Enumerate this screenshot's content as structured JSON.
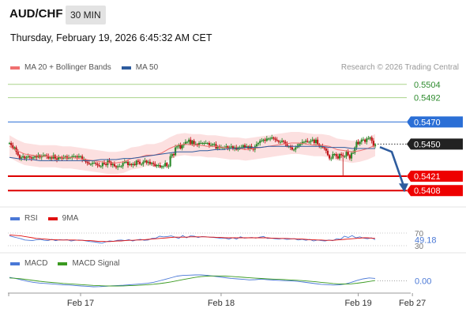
{
  "header": {
    "pair": "AUD/CHF",
    "timeframe": "30 MIN",
    "datetime": "Thursday, February 19, 2026 6:45:32 AM CET"
  },
  "legend": {
    "main": [
      {
        "label": "MA 20 + Bollinger Bands",
        "color": "#f07070"
      },
      {
        "label": "MA 50",
        "color": "#2e5c9e"
      }
    ],
    "credit": "Research © 2026 Trading Central",
    "rsi": [
      {
        "label": "RSI",
        "color": "#4a78d6"
      },
      {
        "label": "9MA",
        "color": "#e01010"
      }
    ],
    "macd": [
      {
        "label": "MACD",
        "color": "#4a78d6"
      },
      {
        "label": "MACD Signal",
        "color": "#3a9a20"
      }
    ]
  },
  "colors": {
    "bull": "#2e8b2e",
    "bear": "#c0181c",
    "band_fill": "#fbdada",
    "ma20": "#f07070",
    "ma50": "#2e5c9e",
    "arrow": "#2e5c9e"
  },
  "chart_data": [
    {
      "type": "candlestick",
      "panel": "price",
      "ylim": [
        0.5396,
        0.5516
      ],
      "levels": [
        {
          "value": 0.5504,
          "label": "0.5504",
          "style": "green-line"
        },
        {
          "value": 0.5492,
          "label": "0.5492",
          "style": "green-line"
        },
        {
          "value": 0.547,
          "label": "0.5470",
          "style": "blue-tag"
        },
        {
          "value": 0.545,
          "label": "0.5450",
          "style": "current-price"
        },
        {
          "value": 0.5421,
          "label": "0.5421",
          "style": "red-tag"
        },
        {
          "value": 0.5408,
          "label": "0.5408",
          "style": "red-tag"
        }
      ],
      "x_labels": [
        "Feb 17",
        "Feb 18",
        "Feb 19",
        "Feb 27"
      ],
      "x_label_index": [
        42,
        125,
        206,
        238
      ],
      "close": [
        0.5451,
        0.5449,
        0.5446,
        0.5447,
        0.5443,
        0.544,
        0.5437,
        0.5438,
        0.5439,
        0.5437,
        0.5438,
        0.5439,
        0.5438,
        0.5437,
        0.5438,
        0.5439,
        0.5438,
        0.544,
        0.5438,
        0.5439,
        0.544,
        0.544,
        0.5439,
        0.5437,
        0.5438,
        0.5437,
        0.544,
        0.5437,
        0.5436,
        0.5438,
        0.5438,
        0.5437,
        0.5438,
        0.5439,
        0.5437,
        0.5438,
        0.5438,
        0.5439,
        0.5439,
        0.5439,
        0.5438,
        0.5439,
        0.5439,
        0.5436,
        0.5436,
        0.5434,
        0.5433,
        0.5432,
        0.5432,
        0.5433,
        0.5433,
        0.5432,
        0.5431,
        0.543,
        0.543,
        0.5433,
        0.5432,
        0.5431,
        0.5435,
        0.5434,
        0.5431,
        0.5432,
        0.543,
        0.5429,
        0.543,
        0.543,
        0.543,
        0.5433,
        0.5434,
        0.5434,
        0.5431,
        0.5432,
        0.5431,
        0.5432,
        0.5431,
        0.5435,
        0.5434,
        0.5432,
        0.5432,
        0.5434,
        0.5435,
        0.5433,
        0.5434,
        0.5432,
        0.5433,
        0.5432,
        0.543,
        0.5431,
        0.5431,
        0.5429,
        0.543,
        0.543,
        0.5433,
        0.543,
        0.543,
        0.5439,
        0.5441,
        0.544,
        0.5447,
        0.5448,
        0.5449,
        0.5446,
        0.5449,
        0.545,
        0.5452,
        0.5452,
        0.5454,
        0.545,
        0.5453,
        0.545,
        0.545,
        0.5449,
        0.5451,
        0.5451,
        0.5451,
        0.5451,
        0.5451,
        0.5451,
        0.5449,
        0.5449,
        0.545,
        0.545,
        0.5446,
        0.5448,
        0.5447,
        0.5447,
        0.5447,
        0.5447,
        0.5448,
        0.5446,
        0.5447,
        0.5448,
        0.5446,
        0.5447,
        0.5445,
        0.5447,
        0.5447,
        0.5447,
        0.5449,
        0.5447,
        0.5448,
        0.5446,
        0.5448,
        0.5446,
        0.5445,
        0.5448,
        0.545,
        0.5451,
        0.5453,
        0.5453,
        0.5454,
        0.5453,
        0.5455,
        0.5455,
        0.5455,
        0.5456,
        0.5455,
        0.5454,
        0.5453,
        0.5452,
        0.5452,
        0.5453,
        0.5452,
        0.545,
        0.5448,
        0.5448,
        0.5447,
        0.5445,
        0.5445,
        0.5447,
        0.5448,
        0.545,
        0.545,
        0.5452,
        0.5452,
        0.5453,
        0.5452,
        0.5452,
        0.5453,
        0.5454,
        0.5451,
        0.5454,
        0.545,
        0.5448,
        0.5448,
        0.5447,
        0.5446,
        0.5444,
        0.544,
        0.5437,
        0.5437,
        0.5441,
        0.5441,
        0.5439,
        0.5437,
        0.5441,
        0.544,
        0.5439,
        0.5439,
        0.5443,
        0.544,
        0.5437,
        0.5442,
        0.5442,
        0.5447,
        0.5452,
        0.545,
        0.5452,
        0.5454,
        0.5454,
        0.5452,
        0.5455,
        0.5455,
        0.5456,
        0.5453,
        0.5448,
        0.545
      ],
      "high_low_spread": 0.0003,
      "wick_anomaly": {
        "index": 197,
        "low": 0.5421
      },
      "ma20": [
        0.5448,
        0.5444,
        0.5441,
        0.544,
        0.5439,
        0.5439,
        0.5439,
        0.5438,
        0.5438,
        0.5437,
        0.5436,
        0.5435,
        0.5434,
        0.5433,
        0.5433,
        0.5434,
        0.5437,
        0.5438,
        0.544,
        0.544,
        0.5442,
        0.5446,
        0.5449,
        0.545,
        0.5449,
        0.5449,
        0.5448,
        0.5448,
        0.5447,
        0.5446,
        0.5446,
        0.5445,
        0.5446,
        0.5447,
        0.5448,
        0.5449,
        0.545,
        0.5451,
        0.5451,
        0.545,
        0.5449,
        0.5449,
        0.5448,
        0.5445,
        0.5444,
        0.5443,
        0.5444,
        0.5446,
        0.5449
      ],
      "ma50": [
        0.5438,
        0.5437,
        0.5436,
        0.5436,
        0.5435,
        0.5435,
        0.5435,
        0.5435,
        0.5435,
        0.5435,
        0.5435,
        0.5435,
        0.5436,
        0.5436,
        0.5436,
        0.5437,
        0.5437,
        0.5438,
        0.5439,
        0.544,
        0.5441,
        0.5442,
        0.5443,
        0.5443,
        0.5443,
        0.5444,
        0.5444,
        0.5445,
        0.5445,
        0.5446,
        0.5446,
        0.5447,
        0.5447,
        0.5447,
        0.5448,
        0.5448,
        0.5448,
        0.5448,
        0.5448,
        0.5448,
        0.5448,
        0.5448,
        0.5447,
        0.5447,
        0.5447,
        0.5446,
        0.5446,
        0.5446,
        0.5446
      ],
      "band_width": 0.001,
      "forecast": {
        "from": 0.5448,
        "to": 0.5408
      }
    },
    {
      "type": "line",
      "panel": "rsi",
      "ylim": [
        30,
        70
      ],
      "ticks": [
        "70",
        "30"
      ],
      "current_label": "49.18",
      "series": [
        {
          "name": "RSI",
          "values": [
            61,
            58,
            55,
            52,
            48,
            47,
            46,
            49,
            50,
            47,
            46,
            50,
            46,
            49,
            48,
            49,
            45,
            47,
            48,
            47,
            45,
            43,
            42,
            40,
            38,
            42,
            45,
            44,
            47,
            48,
            46,
            49,
            45,
            48,
            50,
            47,
            48,
            53,
            54,
            60,
            58,
            59,
            61,
            57,
            53,
            62,
            55,
            61,
            60,
            56,
            59,
            58,
            57,
            56,
            55,
            53,
            54,
            51,
            55,
            51,
            58,
            54,
            55,
            56,
            54,
            57,
            59,
            53,
            54,
            52,
            51,
            53,
            50,
            51,
            52,
            48,
            50,
            47,
            50,
            45,
            48,
            46,
            45,
            48,
            46,
            52,
            50,
            60,
            56,
            62,
            55,
            58,
            54,
            52,
            55,
            49
          ]
        },
        {
          "name": "9MA",
          "values": [
            64,
            63,
            62,
            61,
            59,
            57,
            55,
            53,
            52,
            51,
            50,
            49,
            49,
            48,
            48,
            48,
            48,
            48,
            47,
            47,
            46,
            46,
            45,
            44,
            44,
            43,
            43,
            44,
            45,
            45,
            46,
            47,
            47,
            48,
            48,
            49,
            50,
            51,
            52,
            53,
            54,
            55,
            56,
            57,
            57,
            57,
            57,
            58,
            58,
            58,
            58,
            58,
            57,
            57,
            56,
            56,
            55,
            55,
            55,
            55,
            55,
            55,
            55,
            55,
            55,
            55,
            55,
            55,
            54,
            54,
            53,
            53,
            53,
            52,
            52,
            51,
            51,
            50,
            49,
            49,
            48,
            48,
            47,
            47,
            47,
            48,
            49,
            50,
            51,
            52,
            53,
            54,
            55,
            55,
            54,
            53
          ]
        }
      ]
    },
    {
      "type": "line",
      "panel": "macd",
      "ylim": [
        -1,
        1
      ],
      "ticks": [
        "0.00"
      ],
      "current_label": "0.00",
      "series": [
        {
          "name": "MACD",
          "values": [
            0.35,
            0.25,
            0.1,
            -0.05,
            -0.15,
            -0.22,
            -0.26,
            -0.3,
            -0.35,
            -0.4,
            -0.42,
            -0.47,
            -0.52,
            -0.55,
            -0.6,
            -0.58,
            -0.55,
            -0.5,
            -0.48,
            -0.45,
            -0.4,
            -0.35,
            -0.3,
            -0.25,
            -0.15,
            0.0,
            0.15,
            0.32,
            0.48,
            0.55,
            0.58,
            0.6,
            0.6,
            0.55,
            0.48,
            0.4,
            0.32,
            0.25,
            0.2,
            0.15,
            0.1,
            0.12,
            0.18,
            0.12,
            0.08,
            0.05,
            0.02,
            0.0,
            -0.05,
            -0.12,
            -0.2,
            -0.28,
            -0.35,
            -0.38,
            -0.42,
            -0.4,
            -0.32,
            -0.15,
            0.05,
            0.2,
            0.3,
            0.25
          ]
        },
        {
          "name": "MACD Signal",
          "values": [
            0.3,
            0.26,
            0.2,
            0.12,
            0.04,
            -0.04,
            -0.1,
            -0.16,
            -0.21,
            -0.26,
            -0.3,
            -0.34,
            -0.38,
            -0.42,
            -0.46,
            -0.49,
            -0.51,
            -0.52,
            -0.52,
            -0.51,
            -0.49,
            -0.46,
            -0.43,
            -0.39,
            -0.34,
            -0.28,
            -0.2,
            -0.1,
            0.02,
            0.14,
            0.25,
            0.35,
            0.43,
            0.48,
            0.5,
            0.5,
            0.48,
            0.45,
            0.41,
            0.36,
            0.31,
            0.27,
            0.24,
            0.21,
            0.18,
            0.15,
            0.12,
            0.09,
            0.06,
            0.02,
            -0.03,
            -0.09,
            -0.15,
            -0.21,
            -0.27,
            -0.31,
            -0.32,
            -0.3,
            -0.24,
            -0.16,
            -0.06,
            0.03
          ]
        }
      ]
    }
  ]
}
